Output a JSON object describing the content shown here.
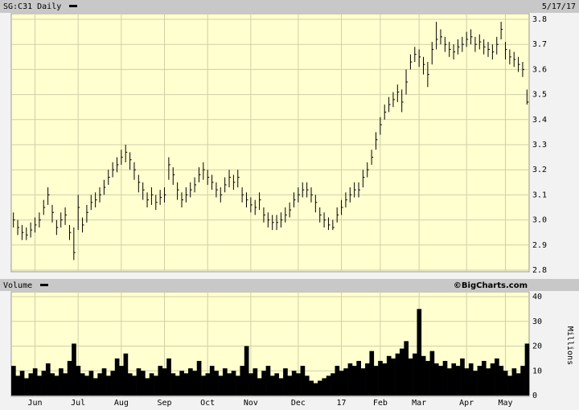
{
  "chart_data": [
    {
      "type": "ohlc",
      "title": "SG:C31 Daily",
      "date": "5/17/17",
      "categories": [
        null,
        null,
        null,
        null,
        null,
        "Jun",
        null,
        null,
        null,
        null,
        null,
        null,
        null,
        null,
        null,
        "Jul",
        null,
        null,
        null,
        null,
        null,
        null,
        null,
        null,
        null,
        "Aug",
        null,
        null,
        null,
        null,
        null,
        null,
        null,
        null,
        null,
        "Sep",
        null,
        null,
        null,
        null,
        null,
        null,
        null,
        null,
        null,
        "Oct",
        null,
        null,
        null,
        null,
        null,
        null,
        null,
        null,
        null,
        "Nov",
        null,
        null,
        null,
        null,
        null,
        null,
        null,
        null,
        null,
        null,
        "Dec",
        null,
        null,
        null,
        null,
        null,
        null,
        null,
        null,
        null,
        "17",
        null,
        null,
        null,
        null,
        null,
        null,
        null,
        null,
        "Feb",
        null,
        null,
        null,
        null,
        null,
        null,
        null,
        null,
        "Mar",
        null,
        null,
        null,
        null,
        null,
        null,
        null,
        null,
        null,
        null,
        "Apr",
        null,
        null,
        null,
        null,
        null,
        null,
        null,
        null,
        "May",
        null,
        null,
        null,
        null,
        null
      ],
      "high": [
        3.03,
        3.0,
        2.98,
        2.97,
        2.99,
        3.01,
        3.03,
        3.08,
        3.13,
        3.06,
        3.0,
        3.03,
        3.05,
        2.98,
        2.97,
        3.1,
        3.01,
        3.06,
        3.1,
        3.11,
        3.13,
        3.16,
        3.2,
        3.23,
        3.25,
        3.28,
        3.3,
        3.27,
        3.23,
        3.18,
        3.15,
        3.11,
        3.13,
        3.1,
        3.12,
        3.13,
        3.25,
        3.21,
        3.15,
        3.11,
        3.13,
        3.15,
        3.17,
        3.21,
        3.23,
        3.2,
        3.18,
        3.15,
        3.13,
        3.17,
        3.2,
        3.18,
        3.2,
        3.13,
        3.11,
        3.09,
        3.08,
        3.11,
        3.05,
        3.03,
        3.02,
        3.02,
        3.03,
        3.05,
        3.07,
        3.11,
        3.13,
        3.15,
        3.15,
        3.13,
        3.1,
        3.05,
        3.03,
        3.01,
        3.0,
        3.05,
        3.08,
        3.11,
        3.13,
        3.15,
        3.15,
        3.2,
        3.23,
        3.28,
        3.35,
        3.41,
        3.46,
        3.49,
        3.51,
        3.54,
        3.52,
        3.6,
        3.66,
        3.69,
        3.68,
        3.65,
        3.63,
        3.71,
        3.79,
        3.76,
        3.73,
        3.71,
        3.7,
        3.72,
        3.73,
        3.75,
        3.76,
        3.73,
        3.74,
        3.72,
        3.71,
        3.7,
        3.73,
        3.79,
        3.71,
        3.68,
        3.67,
        3.65,
        3.63,
        3.52
      ],
      "low": [
        2.97,
        2.94,
        2.92,
        2.92,
        2.93,
        2.95,
        2.97,
        3.02,
        3.06,
        2.99,
        2.94,
        2.97,
        2.98,
        2.92,
        2.84,
        2.96,
        2.95,
        2.99,
        3.04,
        3.05,
        3.07,
        3.1,
        3.14,
        3.17,
        3.19,
        3.22,
        3.23,
        3.2,
        3.16,
        3.11,
        3.08,
        3.05,
        3.06,
        3.04,
        3.06,
        3.07,
        3.16,
        3.14,
        3.08,
        3.05,
        3.07,
        3.09,
        3.11,
        3.15,
        3.16,
        3.14,
        3.12,
        3.09,
        3.07,
        3.11,
        3.13,
        3.12,
        3.13,
        3.07,
        3.05,
        3.03,
        3.02,
        3.04,
        2.99,
        2.97,
        2.96,
        2.96,
        2.97,
        2.99,
        3.01,
        3.05,
        3.07,
        3.09,
        3.09,
        3.07,
        3.03,
        2.99,
        2.97,
        2.96,
        2.96,
        2.99,
        3.02,
        3.05,
        3.07,
        3.09,
        3.09,
        3.13,
        3.17,
        3.22,
        3.28,
        3.34,
        3.4,
        3.43,
        3.45,
        3.47,
        3.43,
        3.5,
        3.6,
        3.63,
        3.61,
        3.58,
        3.53,
        3.62,
        3.68,
        3.7,
        3.67,
        3.65,
        3.64,
        3.66,
        3.67,
        3.69,
        3.7,
        3.67,
        3.68,
        3.66,
        3.65,
        3.64,
        3.66,
        3.72,
        3.64,
        3.62,
        3.61,
        3.59,
        3.57,
        3.46
      ],
      "close": [
        3.0,
        2.97,
        2.95,
        2.94,
        2.96,
        2.98,
        3.0,
        3.05,
        3.1,
        3.03,
        2.97,
        3.0,
        3.02,
        2.95,
        2.87,
        3.05,
        2.98,
        3.03,
        3.07,
        3.08,
        3.1,
        3.13,
        3.17,
        3.2,
        3.22,
        3.25,
        3.27,
        3.24,
        3.2,
        3.15,
        3.12,
        3.08,
        3.1,
        3.07,
        3.09,
        3.1,
        3.22,
        3.18,
        3.12,
        3.08,
        3.1,
        3.12,
        3.14,
        3.18,
        3.2,
        3.17,
        3.15,
        3.12,
        3.1,
        3.14,
        3.17,
        3.15,
        3.17,
        3.1,
        3.08,
        3.06,
        3.05,
        3.08,
        3.02,
        3.0,
        2.99,
        2.99,
        3.0,
        3.02,
        3.04,
        3.08,
        3.1,
        3.12,
        3.12,
        3.1,
        3.07,
        3.02,
        3.0,
        2.98,
        2.97,
        3.02,
        3.05,
        3.08,
        3.1,
        3.12,
        3.12,
        3.17,
        3.2,
        3.25,
        3.32,
        3.38,
        3.43,
        3.46,
        3.48,
        3.51,
        3.47,
        3.55,
        3.63,
        3.66,
        3.65,
        3.62,
        3.58,
        3.68,
        3.72,
        3.73,
        3.7,
        3.68,
        3.67,
        3.69,
        3.7,
        3.72,
        3.73,
        3.7,
        3.71,
        3.69,
        3.68,
        3.67,
        3.7,
        3.76,
        3.68,
        3.65,
        3.64,
        3.62,
        3.6,
        3.47
      ],
      "color": "#000000",
      "ylim": [
        2.8,
        3.8
      ],
      "yticks": [
        2.8,
        2.9,
        {
          "value": 3,
          "label": "3.0"
        },
        3.1,
        3.2,
        3.3,
        3.4,
        3.5,
        3.6,
        3.7,
        3.8
      ],
      "grid": true
    },
    {
      "type": "bar",
      "title": "Volume",
      "source": "©BigCharts.com",
      "y_label": "Millions",
      "values": [
        12,
        8,
        10,
        7,
        9,
        11,
        8,
        10,
        13,
        9,
        8,
        11,
        9,
        14,
        21,
        12,
        9,
        8,
        10,
        7,
        9,
        11,
        8,
        10,
        15,
        12,
        17,
        9,
        8,
        11,
        10,
        7,
        9,
        8,
        12,
        11,
        15,
        9,
        8,
        10,
        9,
        11,
        10,
        14,
        8,
        9,
        12,
        10,
        8,
        11,
        9,
        10,
        8,
        12,
        20,
        9,
        11,
        7,
        10,
        12,
        8,
        9,
        7,
        11,
        8,
        10,
        9,
        12,
        8,
        6,
        5,
        6,
        7,
        8,
        9,
        12,
        10,
        11,
        13,
        12,
        14,
        11,
        13,
        18,
        12,
        14,
        13,
        16,
        15,
        17,
        19,
        22,
        15,
        17,
        35,
        16,
        14,
        18,
        13,
        12,
        14,
        11,
        13,
        12,
        15,
        11,
        13,
        10,
        12,
        14,
        11,
        13,
        15,
        12,
        10,
        8,
        11,
        9,
        12,
        21
      ],
      "color": "#000000",
      "ylim": [
        0,
        40
      ],
      "yticks": [
        0,
        10,
        20,
        30,
        40
      ],
      "grid": true
    }
  ]
}
